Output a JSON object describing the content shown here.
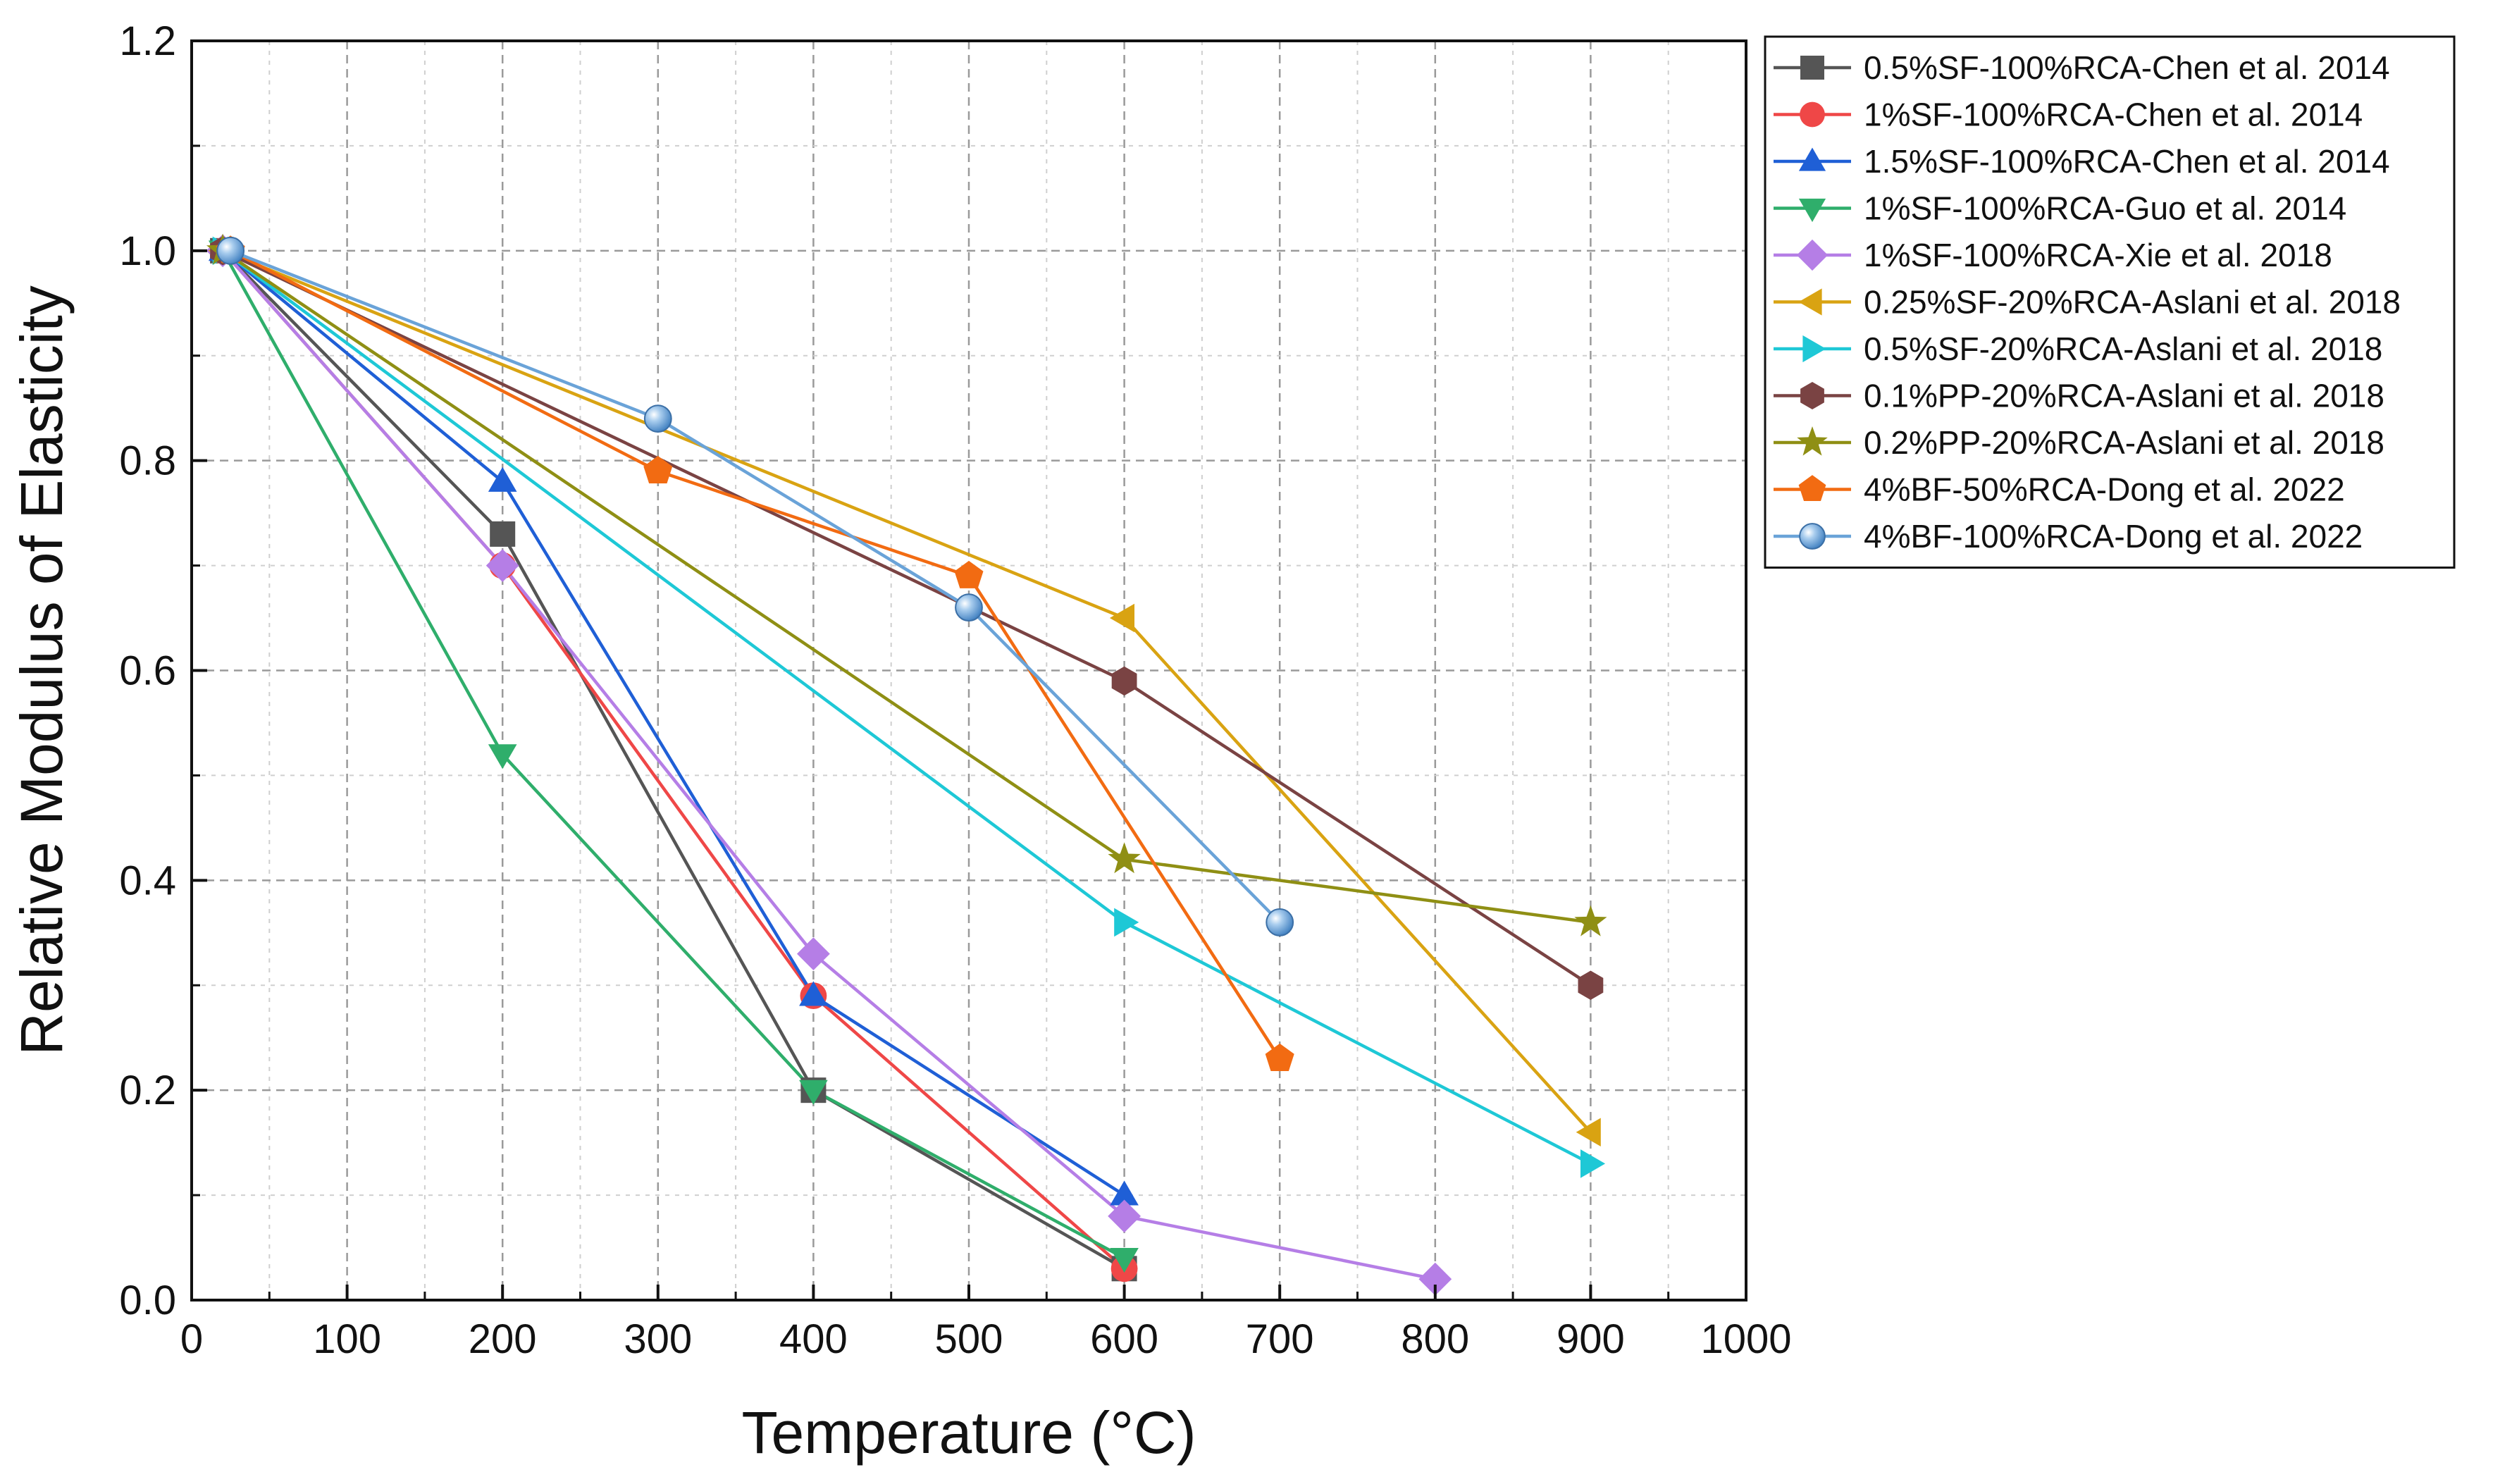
{
  "chart_data": {
    "type": "line",
    "title": "",
    "xlabel": "Temperature (°C)",
    "ylabel": "Relative Modulus of Elasticity",
    "xlim": [
      0,
      1000
    ],
    "ylim": [
      0,
      1.2
    ],
    "xticks": [
      "0",
      "100",
      "200",
      "300",
      "400",
      "500",
      "600",
      "700",
      "800",
      "900",
      "1000"
    ],
    "yticks": [
      "0.0",
      "0.2",
      "0.4",
      "0.6",
      "0.8",
      "1.0",
      "1.2"
    ],
    "grid": true,
    "legend_position": "outside-right-top",
    "series": [
      {
        "name": "0.5%SF-100%RCA-Chen et al. 2014",
        "color": "#555555",
        "marker": "square",
        "x": [
          20,
          200,
          400,
          600
        ],
        "y": [
          1.0,
          0.73,
          0.2,
          0.03
        ]
      },
      {
        "name": "1%SF-100%RCA-Chen et al. 2014",
        "color": "#ef4747",
        "marker": "circle",
        "x": [
          20,
          200,
          400,
          600
        ],
        "y": [
          1.0,
          0.7,
          0.29,
          0.03
        ]
      },
      {
        "name": "1.5%SF-100%RCA-Chen et al. 2014",
        "color": "#1f5fd6",
        "marker": "triangle-up",
        "x": [
          20,
          200,
          400,
          600
        ],
        "y": [
          1.0,
          0.78,
          0.29,
          0.1
        ]
      },
      {
        "name": "1%SF-100%RCA-Guo et al. 2014",
        "color": "#2fae6b",
        "marker": "triangle-down",
        "x": [
          20,
          200,
          400,
          600
        ],
        "y": [
          1.0,
          0.52,
          0.2,
          0.04
        ]
      },
      {
        "name": "1%SF-100%RCA-Xie et al. 2018",
        "color": "#b57ee6",
        "marker": "diamond",
        "x": [
          20,
          200,
          400,
          600,
          800
        ],
        "y": [
          1.0,
          0.7,
          0.33,
          0.08,
          0.02
        ]
      },
      {
        "name": "0.25%SF-20%RCA-Aslani et al. 2018",
        "color": "#d9a312",
        "marker": "triangle-left",
        "x": [
          20,
          600,
          900
        ],
        "y": [
          1.0,
          0.65,
          0.16
        ]
      },
      {
        "name": "0.5%SF-20%RCA-Aslani et al. 2018",
        "color": "#1ec8d6",
        "marker": "triangle-right",
        "x": [
          20,
          600,
          900
        ],
        "y": [
          1.0,
          0.36,
          0.13
        ]
      },
      {
        "name": "0.1%PP-20%RCA-Aslani et al. 2018",
        "color": "#7a4343",
        "marker": "hexagon",
        "x": [
          20,
          600,
          900
        ],
        "y": [
          1.0,
          0.59,
          0.3
        ]
      },
      {
        "name": "0.2%PP-20%RCA-Aslani et al. 2018",
        "color": "#8f8f14",
        "marker": "star",
        "x": [
          20,
          600,
          900
        ],
        "y": [
          1.0,
          0.42,
          0.36
        ]
      },
      {
        "name": "4%BF-50%RCA-Dong et al. 2022",
        "color": "#f26b12",
        "marker": "pentagon",
        "x": [
          25,
          300,
          500,
          700
        ],
        "y": [
          1.0,
          0.79,
          0.69,
          0.23
        ]
      },
      {
        "name": "4%BF-100%RCA-Dong et al. 2022",
        "color": "#6aa3d8",
        "marker": "sphere",
        "x": [
          25,
          300,
          500,
          700
        ],
        "y": [
          1.0,
          0.84,
          0.66,
          0.36
        ]
      }
    ]
  }
}
